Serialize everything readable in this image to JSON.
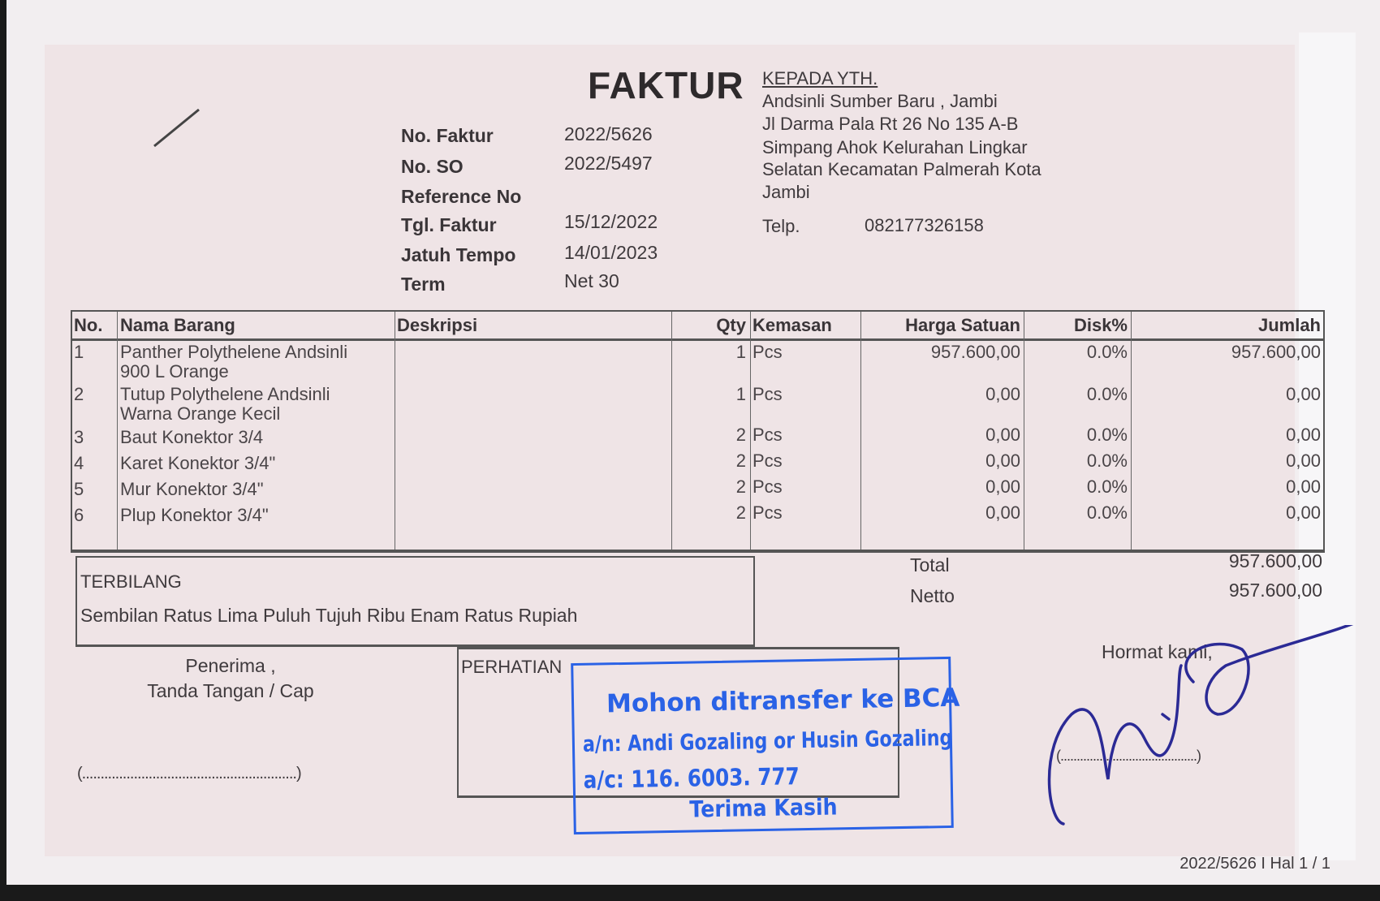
{
  "header": {
    "title": "FAKTUR",
    "recipient_heading": "KEPADA YTH."
  },
  "fields": [
    {
      "label": "No. Faktur",
      "value": "2022/5626"
    },
    {
      "label": "No. SO",
      "value": "2022/5497"
    },
    {
      "label": "Reference No",
      "value": ""
    },
    {
      "label": "Tgl. Faktur",
      "value": "15/12/2022"
    },
    {
      "label": "Jatuh Tempo",
      "value": "14/01/2023"
    },
    {
      "label": "Term",
      "value": "Net 30"
    }
  ],
  "recipient": {
    "lines": [
      "Andsinli Sumber Baru , Jambi",
      "Jl Darma Pala Rt 26 No 135 A-B",
      "Simpang Ahok Kelurahan Lingkar",
      "Selatan Kecamatan Palmerah Kota",
      "Jambi"
    ],
    "phone_label": "Telp.",
    "phone": "082177326158"
  },
  "table": {
    "columns": [
      "No.",
      "Nama Barang",
      "Deskripsi",
      "Qty",
      "Kemasan",
      "Harga Satuan",
      "Disk%",
      "Jumlah"
    ],
    "rows": [
      {
        "no": "1",
        "name1": "Panther Polythelene Andsinli",
        "name2": "900 L Orange",
        "desc": "",
        "qty": "1",
        "unit": "Pcs",
        "price": "957.600,00",
        "disc": "0.0%",
        "total": "957.600,00"
      },
      {
        "no": "2",
        "name1": "Tutup Polythelene Andsinli",
        "name2": "Warna Orange Kecil",
        "desc": "",
        "qty": "1",
        "unit": "Pcs",
        "price": "0,00",
        "disc": "0.0%",
        "total": "0,00"
      },
      {
        "no": "3",
        "name1": "Baut Konektor 3/4",
        "name2": "",
        "desc": "",
        "qty": "2",
        "unit": "Pcs",
        "price": "0,00",
        "disc": "0.0%",
        "total": "0,00"
      },
      {
        "no": "4",
        "name1": "Karet Konektor 3/4\"",
        "name2": "",
        "desc": "",
        "qty": "2",
        "unit": "Pcs",
        "price": "0,00",
        "disc": "0.0%",
        "total": "0,00"
      },
      {
        "no": "5",
        "name1": "Mur Konektor 3/4\"",
        "name2": "",
        "desc": "",
        "qty": "2",
        "unit": "Pcs",
        "price": "0,00",
        "disc": "0.0%",
        "total": "0,00"
      },
      {
        "no": "6",
        "name1": "Plup Konektor 3/4\"",
        "name2": "",
        "desc": "",
        "qty": "2",
        "unit": "Pcs",
        "price": "0,00",
        "disc": "0.0%",
        "total": "0,00"
      }
    ]
  },
  "terbilang": {
    "label": "TERBILANG",
    "text": "Sembilan Ratus Lima Puluh Tujuh Ribu Enam Ratus Rupiah"
  },
  "summary": {
    "total_label": "Total",
    "total": "957.600,00",
    "netto_label": "Netto",
    "netto": "957.600,00"
  },
  "receiver": {
    "line1": "Penerima ,",
    "line2": "Tanda Tangan / Cap",
    "sign_line": "(..........................................................)"
  },
  "perhatian": {
    "label": "PERHATIAN"
  },
  "stamp": {
    "line1": "Mohon ditransfer ke BCA",
    "line2": "a/n: Andi Gozaling or Husin Gozaling",
    "line3": "a/c: 116. 6003. 777",
    "line4": "Terima Kasih",
    "color": "#2a62e6"
  },
  "sender": {
    "label": "Hormat kami,",
    "sign_line": "(..........................................)"
  },
  "footer": {
    "page": "2022/5626 I Hal 1 / 1"
  }
}
